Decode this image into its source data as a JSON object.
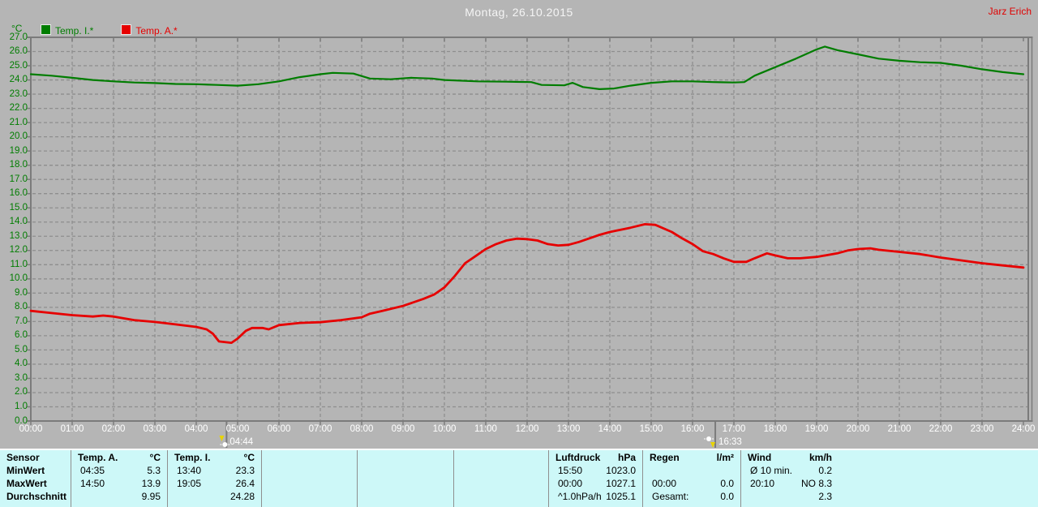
{
  "header": {
    "title": "Montag, 26.10.2015",
    "watermark": "Jarz Erich"
  },
  "legend": {
    "axis_unit": "°C",
    "items": [
      {
        "label": "Temp. I.*",
        "color": "#007d00"
      },
      {
        "label": "Temp. A.*",
        "color": "#e60000"
      }
    ]
  },
  "chart_data": {
    "type": "line",
    "title": "Montag, 26.10.2015",
    "ylabel": "°C",
    "xlabel": "",
    "grid": true,
    "xlim": [
      0,
      24
    ],
    "ylim": [
      0,
      27
    ],
    "y_tick_step": 1,
    "y_tick_labels": [
      "0.0",
      "1.0",
      "2.0",
      "3.0",
      "4.0",
      "5.0",
      "6.0",
      "7.0",
      "8.0",
      "9.0",
      "10.0",
      "11.0",
      "12.0",
      "13.0",
      "14.0",
      "15.0",
      "16.0",
      "17.0",
      "18.0",
      "19.0",
      "20.0",
      "21.0",
      "22.0",
      "23.0",
      "24.0",
      "25.0",
      "26.0",
      "27.0"
    ],
    "x_tick_labels": [
      "00:00",
      "01:00",
      "02:00",
      "03:00",
      "04:00",
      "05:00",
      "06:00",
      "07:00",
      "08:00",
      "09:00",
      "10:00",
      "11:00",
      "12:00",
      "13:00",
      "14:00",
      "15:00",
      "16:00",
      "17:00",
      "18:00",
      "19:00",
      "20:00",
      "21:00",
      "22:00",
      "23:00",
      "24:00"
    ],
    "series": [
      {
        "name": "Temp. I.*",
        "color": "#007d00",
        "width": 2.2,
        "points": [
          [
            0,
            24.4
          ],
          [
            0.5,
            24.3
          ],
          [
            1,
            24.15
          ],
          [
            1.5,
            24.0
          ],
          [
            2,
            23.9
          ],
          [
            2.5,
            23.82
          ],
          [
            3,
            23.78
          ],
          [
            3.5,
            23.72
          ],
          [
            4,
            23.7
          ],
          [
            4.5,
            23.65
          ],
          [
            5,
            23.6
          ],
          [
            5.5,
            23.7
          ],
          [
            6,
            23.9
          ],
          [
            6.5,
            24.2
          ],
          [
            7,
            24.4
          ],
          [
            7.3,
            24.5
          ],
          [
            7.8,
            24.45
          ],
          [
            8.2,
            24.1
          ],
          [
            8.7,
            24.05
          ],
          [
            9.2,
            24.15
          ],
          [
            9.7,
            24.1
          ],
          [
            10,
            24.0
          ],
          [
            10.8,
            23.9
          ],
          [
            11.5,
            23.88
          ],
          [
            12.1,
            23.85
          ],
          [
            12.35,
            23.65
          ],
          [
            12.9,
            23.62
          ],
          [
            13.1,
            23.8
          ],
          [
            13.35,
            23.5
          ],
          [
            13.75,
            23.35
          ],
          [
            14.1,
            23.4
          ],
          [
            14.5,
            23.6
          ],
          [
            15,
            23.8
          ],
          [
            15.5,
            23.9
          ],
          [
            16,
            23.9
          ],
          [
            16.5,
            23.85
          ],
          [
            17,
            23.82
          ],
          [
            17.25,
            23.85
          ],
          [
            17.5,
            24.3
          ],
          [
            18,
            24.9
          ],
          [
            18.5,
            25.5
          ],
          [
            19,
            26.15
          ],
          [
            19.2,
            26.35
          ],
          [
            19.5,
            26.1
          ],
          [
            20,
            25.8
          ],
          [
            20.5,
            25.5
          ],
          [
            21,
            25.35
          ],
          [
            21.5,
            25.25
          ],
          [
            22,
            25.2
          ],
          [
            22.5,
            25.0
          ],
          [
            23,
            24.75
          ],
          [
            23.5,
            24.55
          ],
          [
            24,
            24.4
          ]
        ]
      },
      {
        "name": "Temp. A.*",
        "color": "#e60000",
        "width": 2.8,
        "points": [
          [
            0,
            7.75
          ],
          [
            0.5,
            7.6
          ],
          [
            1,
            7.45
          ],
          [
            1.5,
            7.35
          ],
          [
            1.75,
            7.42
          ],
          [
            2,
            7.35
          ],
          [
            2.5,
            7.1
          ],
          [
            3,
            6.97
          ],
          [
            3.5,
            6.8
          ],
          [
            4,
            6.62
          ],
          [
            4.25,
            6.45
          ],
          [
            4.4,
            6.15
          ],
          [
            4.55,
            5.6
          ],
          [
            4.85,
            5.5
          ],
          [
            5.0,
            5.8
          ],
          [
            5.2,
            6.35
          ],
          [
            5.35,
            6.55
          ],
          [
            5.6,
            6.55
          ],
          [
            5.75,
            6.45
          ],
          [
            6,
            6.75
          ],
          [
            6.5,
            6.9
          ],
          [
            7,
            6.95
          ],
          [
            7.5,
            7.1
          ],
          [
            8,
            7.3
          ],
          [
            8.2,
            7.55
          ],
          [
            8.5,
            7.75
          ],
          [
            9,
            8.1
          ],
          [
            9.5,
            8.6
          ],
          [
            9.75,
            8.9
          ],
          [
            10,
            9.4
          ],
          [
            10.25,
            10.2
          ],
          [
            10.5,
            11.1
          ],
          [
            10.75,
            11.6
          ],
          [
            11,
            12.1
          ],
          [
            11.25,
            12.45
          ],
          [
            11.5,
            12.7
          ],
          [
            11.75,
            12.83
          ],
          [
            12,
            12.8
          ],
          [
            12.25,
            12.7
          ],
          [
            12.5,
            12.45
          ],
          [
            12.75,
            12.35
          ],
          [
            13,
            12.4
          ],
          [
            13.25,
            12.6
          ],
          [
            13.5,
            12.85
          ],
          [
            13.75,
            13.1
          ],
          [
            14,
            13.3
          ],
          [
            14.5,
            13.6
          ],
          [
            14.85,
            13.85
          ],
          [
            15.1,
            13.8
          ],
          [
            15.5,
            13.3
          ],
          [
            15.75,
            12.85
          ],
          [
            16,
            12.45
          ],
          [
            16.25,
            11.95
          ],
          [
            16.5,
            11.75
          ],
          [
            16.75,
            11.45
          ],
          [
            17,
            11.2
          ],
          [
            17.3,
            11.2
          ],
          [
            17.5,
            11.45
          ],
          [
            17.8,
            11.8
          ],
          [
            18,
            11.65
          ],
          [
            18.3,
            11.45
          ],
          [
            18.6,
            11.45
          ],
          [
            19,
            11.55
          ],
          [
            19.5,
            11.8
          ],
          [
            19.75,
            12.0
          ],
          [
            20,
            12.1
          ],
          [
            20.3,
            12.15
          ],
          [
            20.5,
            12.05
          ],
          [
            21,
            11.9
          ],
          [
            21.5,
            11.75
          ],
          [
            22,
            11.5
          ],
          [
            22.5,
            11.3
          ],
          [
            23,
            11.1
          ],
          [
            23.5,
            10.95
          ],
          [
            24,
            10.8
          ]
        ]
      }
    ],
    "markers": [
      {
        "type": "sunrise",
        "time": "04:44",
        "hour": 4.733
      },
      {
        "type": "sunset",
        "time": "16:33",
        "hour": 16.55
      }
    ]
  },
  "table": {
    "row_labels": [
      "Sensor",
      "MinWert",
      "MaxWert",
      "Durchschnitt"
    ],
    "columns": [
      {
        "title": "Temp. A.",
        "unit": "°C",
        "rows": [
          [
            "04:35",
            "5.3"
          ],
          [
            "14:50",
            "13.9"
          ],
          [
            "",
            "9.95"
          ]
        ]
      },
      {
        "title": "Temp. I.",
        "unit": "°C",
        "rows": [
          [
            "13:40",
            "23.3"
          ],
          [
            "19:05",
            "26.4"
          ],
          [
            "",
            "24.28"
          ]
        ]
      },
      {
        "title": "",
        "unit": "",
        "rows": [
          [
            "",
            ""
          ],
          [
            "",
            ""
          ],
          [
            "",
            ""
          ]
        ]
      },
      {
        "title": "",
        "unit": "",
        "rows": [
          [
            "",
            ""
          ],
          [
            "",
            ""
          ],
          [
            "",
            ""
          ]
        ]
      },
      {
        "title": "",
        "unit": "",
        "rows": [
          [
            "",
            ""
          ],
          [
            "",
            ""
          ],
          [
            "",
            ""
          ]
        ]
      },
      {
        "title": "Luftdruck",
        "unit": "hPa",
        "rows": [
          [
            "15:50",
            "1023.0"
          ],
          [
            "00:00",
            "1027.1"
          ],
          [
            "^1.0hPa/h",
            "1025.1"
          ]
        ]
      },
      {
        "title": "Regen",
        "unit": "l/m²",
        "rows": [
          [
            "",
            ""
          ],
          [
            "00:00",
            "0.0"
          ],
          [
            "Gesamt:",
            "0.0"
          ]
        ]
      },
      {
        "title": "Wind",
        "unit": "km/h",
        "rows": [
          [
            "Ø 10 min.",
            "0.2"
          ],
          [
            "20:10",
            "NO 8.3"
          ],
          [
            "",
            "2.3"
          ]
        ]
      }
    ]
  }
}
